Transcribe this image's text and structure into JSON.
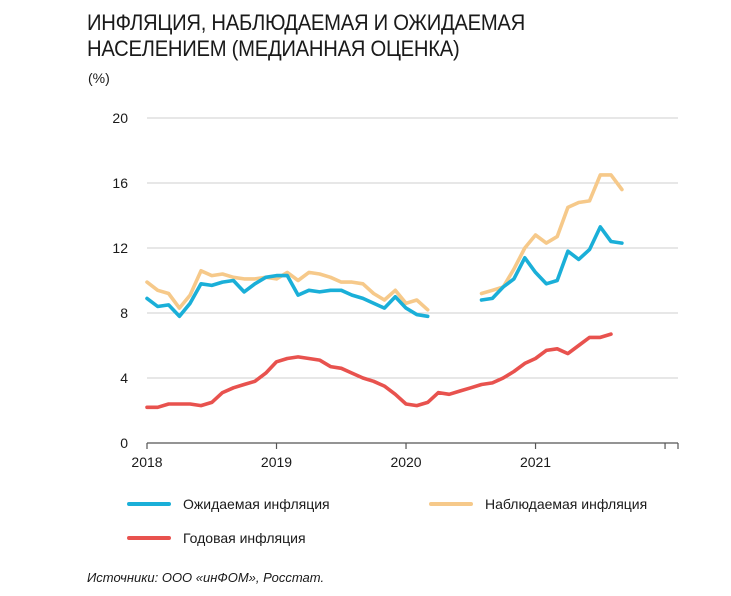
{
  "chart_data": {
    "type": "line",
    "title": "ИНФЛЯЦИЯ, НАБЛЮДАЕМАЯ И ОЖИДАЕМАЯ НАСЕЛЕНИЕМ (МЕДИАННАЯ ОЦЕНКА)",
    "ylabel": "(%)",
    "xlabel": "",
    "ylim": [
      0,
      20
    ],
    "xlim": [
      2018.0,
      2022.1
    ],
    "yticks": [
      "0",
      "4",
      "8",
      "12",
      "16",
      "20"
    ],
    "xticks": [
      "2018",
      "2019",
      "2020",
      "2021"
    ],
    "grid": "horizontal",
    "legend_position": "bottom",
    "source": "Источники: ООО «инФОМ», Росстат.",
    "colors": {
      "expected": "#1aafd8",
      "observed": "#f6c98a",
      "annual": "#e8524e"
    },
    "series": [
      {
        "key": "expected",
        "name": "Ожидаемая инфляция",
        "points": [
          [
            2018.0,
            8.9
          ],
          [
            2018.083,
            8.4
          ],
          [
            2018.167,
            8.5
          ],
          [
            2018.25,
            7.8
          ],
          [
            2018.333,
            8.6
          ],
          [
            2018.417,
            9.8
          ],
          [
            2018.5,
            9.7
          ],
          [
            2018.583,
            9.9
          ],
          [
            2018.667,
            10.0
          ],
          [
            2018.75,
            9.3
          ],
          [
            2018.833,
            9.8
          ],
          [
            2018.917,
            10.2
          ],
          [
            2019.0,
            10.3
          ],
          [
            2019.083,
            10.3
          ],
          [
            2019.167,
            9.1
          ],
          [
            2019.25,
            9.4
          ],
          [
            2019.333,
            9.3
          ],
          [
            2019.417,
            9.4
          ],
          [
            2019.5,
            9.4
          ],
          [
            2019.583,
            9.1
          ],
          [
            2019.667,
            8.9
          ],
          [
            2019.75,
            8.6
          ],
          [
            2019.833,
            8.3
          ],
          [
            2019.917,
            9.0
          ],
          [
            2020.0,
            8.3
          ],
          [
            2020.083,
            7.9
          ],
          [
            2020.167,
            7.8
          ],
          null,
          null,
          null,
          null,
          null,
          [
            2020.583,
            8.8
          ],
          [
            2020.667,
            8.9
          ],
          [
            2020.75,
            9.6
          ],
          [
            2020.833,
            10.1
          ],
          [
            2020.917,
            11.4
          ],
          [
            2021.0,
            10.5
          ],
          [
            2021.083,
            9.8
          ],
          [
            2021.167,
            10.0
          ],
          [
            2021.25,
            11.8
          ],
          [
            2021.333,
            11.3
          ],
          [
            2021.417,
            11.9
          ],
          [
            2021.5,
            13.3
          ],
          [
            2021.583,
            12.4
          ],
          [
            2021.667,
            12.3
          ]
        ]
      },
      {
        "key": "observed",
        "name": "Наблюдаемая  инфляция",
        "points": [
          [
            2018.0,
            9.9
          ],
          [
            2018.083,
            9.4
          ],
          [
            2018.167,
            9.2
          ],
          [
            2018.25,
            8.3
          ],
          [
            2018.333,
            9.1
          ],
          [
            2018.417,
            10.6
          ],
          [
            2018.5,
            10.3
          ],
          [
            2018.583,
            10.4
          ],
          [
            2018.667,
            10.2
          ],
          [
            2018.75,
            10.1
          ],
          [
            2018.833,
            10.1
          ],
          [
            2018.917,
            10.2
          ],
          [
            2019.0,
            10.1
          ],
          [
            2019.083,
            10.5
          ],
          [
            2019.167,
            10.0
          ],
          [
            2019.25,
            10.5
          ],
          [
            2019.333,
            10.4
          ],
          [
            2019.417,
            10.2
          ],
          [
            2019.5,
            9.9
          ],
          [
            2019.583,
            9.9
          ],
          [
            2019.667,
            9.8
          ],
          [
            2019.75,
            9.2
          ],
          [
            2019.833,
            8.8
          ],
          [
            2019.917,
            9.4
          ],
          [
            2020.0,
            8.6
          ],
          [
            2020.083,
            8.8
          ],
          [
            2020.167,
            8.2
          ],
          null,
          null,
          null,
          null,
          null,
          [
            2020.583,
            9.2
          ],
          [
            2020.667,
            9.4
          ],
          [
            2020.75,
            9.6
          ],
          [
            2020.833,
            10.7
          ],
          [
            2020.917,
            12.0
          ],
          [
            2021.0,
            12.8
          ],
          [
            2021.083,
            12.3
          ],
          [
            2021.167,
            12.7
          ],
          [
            2021.25,
            14.5
          ],
          [
            2021.333,
            14.8
          ],
          [
            2021.417,
            14.9
          ],
          [
            2021.5,
            16.5
          ],
          [
            2021.583,
            16.5
          ],
          [
            2021.667,
            15.6
          ]
        ]
      },
      {
        "key": "annual",
        "name": "Годовая инфляция",
        "points": [
          [
            2018.0,
            2.2
          ],
          [
            2018.083,
            2.2
          ],
          [
            2018.167,
            2.4
          ],
          [
            2018.25,
            2.4
          ],
          [
            2018.333,
            2.4
          ],
          [
            2018.417,
            2.3
          ],
          [
            2018.5,
            2.5
          ],
          [
            2018.583,
            3.1
          ],
          [
            2018.667,
            3.4
          ],
          [
            2018.75,
            3.6
          ],
          [
            2018.833,
            3.8
          ],
          [
            2018.917,
            4.3
          ],
          [
            2019.0,
            5.0
          ],
          [
            2019.083,
            5.2
          ],
          [
            2019.167,
            5.3
          ],
          [
            2019.25,
            5.2
          ],
          [
            2019.333,
            5.1
          ],
          [
            2019.417,
            4.7
          ],
          [
            2019.5,
            4.6
          ],
          [
            2019.583,
            4.3
          ],
          [
            2019.667,
            4.0
          ],
          [
            2019.75,
            3.8
          ],
          [
            2019.833,
            3.5
          ],
          [
            2019.917,
            3.0
          ],
          [
            2020.0,
            2.4
          ],
          [
            2020.083,
            2.3
          ],
          [
            2020.167,
            2.5
          ],
          [
            2020.25,
            3.1
          ],
          [
            2020.333,
            3.0
          ],
          [
            2020.417,
            3.2
          ],
          [
            2020.5,
            3.4
          ],
          [
            2020.583,
            3.6
          ],
          [
            2020.667,
            3.7
          ],
          [
            2020.75,
            4.0
          ],
          [
            2020.833,
            4.4
          ],
          [
            2020.917,
            4.9
          ],
          [
            2021.0,
            5.2
          ],
          [
            2021.083,
            5.7
          ],
          [
            2021.167,
            5.8
          ],
          [
            2021.25,
            5.5
          ],
          [
            2021.333,
            6.0
          ],
          [
            2021.417,
            6.5
          ],
          [
            2021.5,
            6.5
          ],
          [
            2021.583,
            6.7
          ]
        ]
      }
    ]
  }
}
